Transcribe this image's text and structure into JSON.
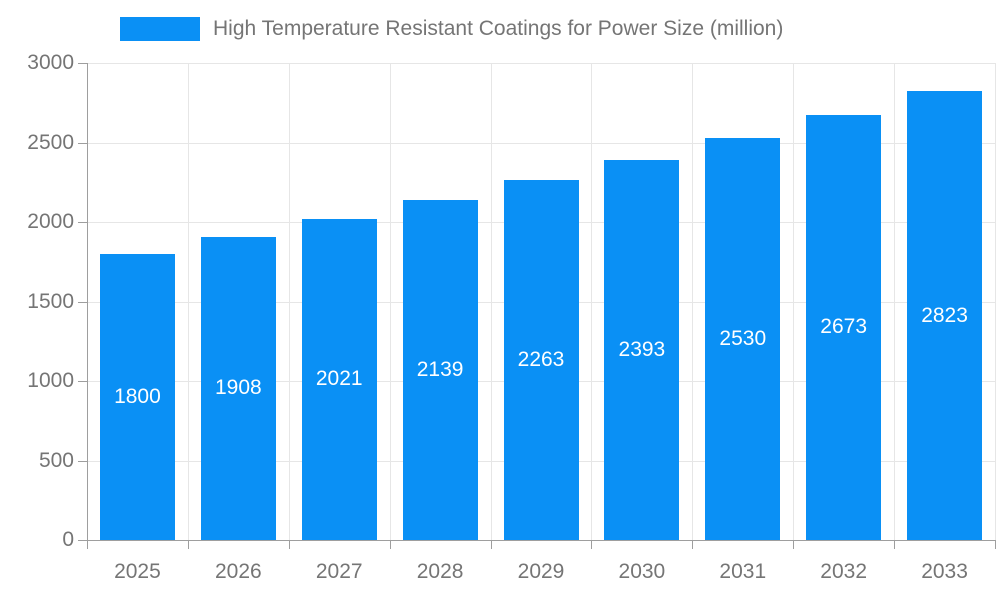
{
  "legend": {
    "label": "High Temperature Resistant Coatings for Power Size (million)"
  },
  "chart_data": {
    "type": "bar",
    "title": "High Temperature Resistant Coatings for Power Size (million)",
    "categories": [
      "2025",
      "2026",
      "2027",
      "2028",
      "2029",
      "2030",
      "2031",
      "2032",
      "2033"
    ],
    "values": [
      1800,
      1908,
      2021,
      2139,
      2263,
      2393,
      2530,
      2673,
      2823
    ],
    "xlabel": "",
    "ylabel": "",
    "ylim": [
      0,
      3000
    ],
    "yticks": [
      0,
      500,
      1000,
      1500,
      2000,
      2500,
      3000
    ],
    "grid": true,
    "legend_position": "top",
    "bar_color": "#0a90f5",
    "value_label_color": "#ffffff",
    "grid_color": "#e6e6e6",
    "axis_color": "#9e9e9e",
    "tick_label_color": "#757575"
  }
}
